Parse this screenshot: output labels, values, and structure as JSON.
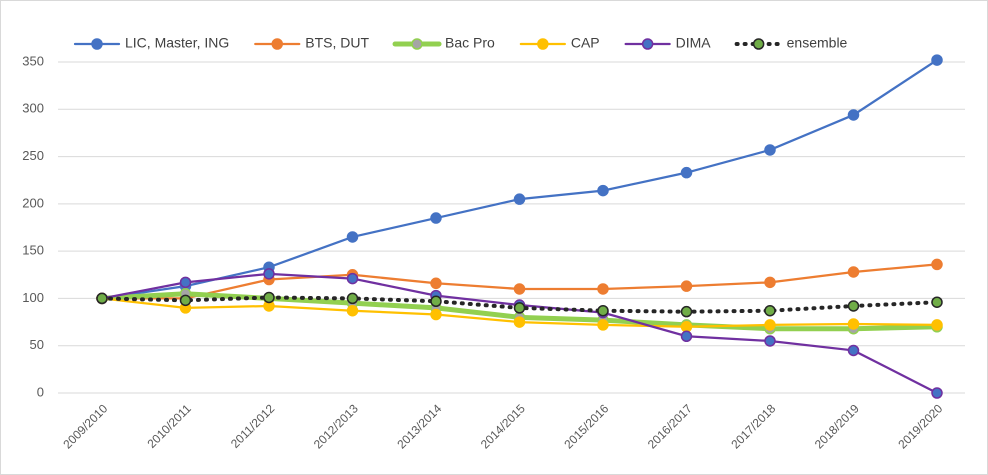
{
  "chart_data": {
    "type": "line",
    "categories": [
      "2009/2010",
      "2010/2011",
      "2011/2012",
      "2012/2013",
      "2013/2014",
      "2014/2015",
      "2015/2016",
      "2016/2017",
      "2017/2018",
      "2018/2019",
      "2019/2020"
    ],
    "series": [
      {
        "name": "LIC, Master, ING",
        "color": "#4472c4",
        "marker_color": "#4472c4",
        "values": [
          100,
          113,
          133,
          165,
          185,
          205,
          214,
          233,
          257,
          294,
          352
        ]
      },
      {
        "name": "BTS, DUT",
        "color": "#ed7d31",
        "marker_color": "#ed7d31",
        "values": [
          100,
          100,
          120,
          125,
          116,
          110,
          110,
          113,
          117,
          128,
          136
        ]
      },
      {
        "name": "Bac Pro",
        "color": "#92d050",
        "marker_color": "#a5a5a5",
        "values": [
          100,
          105,
          100,
          95,
          90,
          80,
          77,
          72,
          68,
          68,
          70
        ]
      },
      {
        "name": "CAP",
        "color": "#ffc000",
        "marker_color": "#ffc000",
        "values": [
          100,
          90,
          92,
          87,
          83,
          75,
          72,
          70,
          72,
          73,
          72
        ]
      },
      {
        "name": "DIMA",
        "color": "#7030a0",
        "marker_color": "#4472c4",
        "values": [
          100,
          117,
          126,
          121,
          103,
          93,
          85,
          60,
          55,
          45,
          0
        ]
      },
      {
        "name": "ensemble",
        "color": "#262626",
        "marker_color": "#70ad47",
        "dash": "dotted",
        "values": [
          100,
          98,
          101,
          100,
          97,
          90,
          87,
          86,
          87,
          92,
          96
        ]
      }
    ],
    "ylim": [
      0,
      350
    ],
    "yticks": [
      0,
      50,
      100,
      150,
      200,
      250,
      300,
      350
    ],
    "grid": true,
    "legend": "top"
  }
}
